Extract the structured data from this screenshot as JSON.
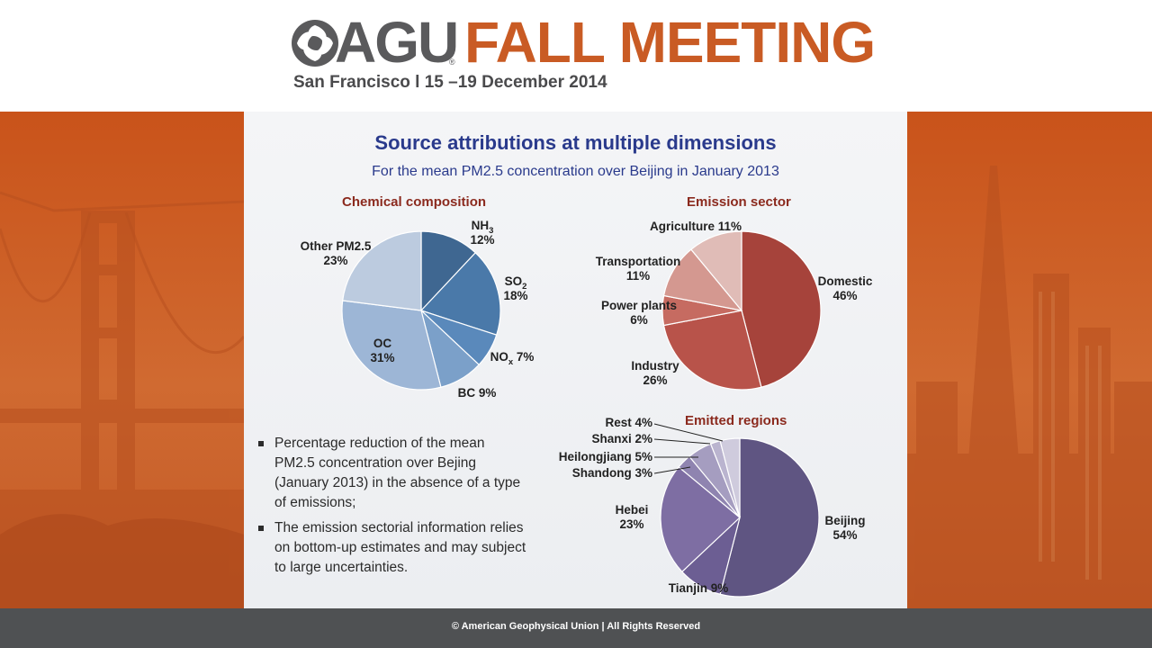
{
  "header": {
    "agu": "AGU",
    "fall_meeting": "FALL MEETING",
    "location_dates": "San Francisco  l  15 –19 December 2014"
  },
  "slide": {
    "title": "Source attributions at multiple dimensions",
    "subtitle": "For the mean PM2.5 concentration over Beijing in January 2013",
    "bullets": [
      "Percentage reduction of the mean PM2.5 concentration over Bejing (January 2013) in the absence of a type of emissions;",
      "The emission sectorial information relies on bottom-up estimates and may subject to large uncertainties."
    ]
  },
  "chart_data": [
    {
      "type": "pie",
      "title": "Chemical composition",
      "slices": [
        {
          "name": "NH3",
          "label": "NH",
          "sub": "3",
          "pct": "12%",
          "value": 12,
          "color": "#3f6791"
        },
        {
          "name": "SO2",
          "label": "SO",
          "sub": "2",
          "pct": "18%",
          "value": 18,
          "color": "#4a79a9"
        },
        {
          "name": "NOx",
          "label": "NO",
          "sub": "x",
          "pct": "7%",
          "value": 7,
          "color": "#5a89bb"
        },
        {
          "name": "BC",
          "label": "BC",
          "sub": "",
          "pct": "9%",
          "value": 9,
          "color": "#7ba0c9"
        },
        {
          "name": "OC",
          "label": "OC",
          "sub": "",
          "pct": "31%",
          "value": 31,
          "color": "#9db6d6"
        },
        {
          "name": "Other PM2.5",
          "label": "Other PM2.5",
          "sub": "",
          "pct": "23%",
          "value": 23,
          "color": "#bccbdf"
        }
      ]
    },
    {
      "type": "pie",
      "title": "Emission sector",
      "slices": [
        {
          "name": "Domestic",
          "label": "Domestic",
          "pct": "46%",
          "value": 46,
          "color": "#a6433b"
        },
        {
          "name": "Industry",
          "label": "Industry",
          "pct": "26%",
          "value": 26,
          "color": "#b8534a"
        },
        {
          "name": "Power plants",
          "label": "Power plants",
          "pct": "6%",
          "value": 6,
          "color": "#c66b61"
        },
        {
          "name": "Transportation",
          "label": "Transportation",
          "pct": "11%",
          "value": 11,
          "color": "#d49890"
        },
        {
          "name": "Agriculture",
          "label": "Agriculture",
          "pct": "11%",
          "value": 11,
          "color": "#e0bcb7"
        }
      ]
    },
    {
      "type": "pie",
      "title": "Emitted regions",
      "slices": [
        {
          "name": "Beijing",
          "label": "Beijing",
          "pct": "54%",
          "value": 54,
          "color": "#5f5582"
        },
        {
          "name": "Tianjin",
          "label": "Tianjin",
          "pct": "9%",
          "value": 9,
          "color": "#6c5e93"
        },
        {
          "name": "Hebei",
          "label": "Hebei",
          "pct": "23%",
          "value": 23,
          "color": "#7e6ea3"
        },
        {
          "name": "Shandong",
          "label": "Shandong",
          "pct": "3%",
          "value": 3,
          "color": "#8f84b0"
        },
        {
          "name": "Heilongjiang",
          "label": "Heilongjiang",
          "pct": "5%",
          "value": 5,
          "color": "#a59dc0"
        },
        {
          "name": "Shanxi",
          "label": "Shanxi",
          "pct": "2%",
          "value": 2,
          "color": "#bab4cf"
        },
        {
          "name": "Rest",
          "label": "Rest",
          "pct": "4%",
          "value": 4,
          "color": "#cfcbdd"
        }
      ]
    }
  ],
  "footer": {
    "copyright": "© American Geophysical Union | All Rights Reserved"
  }
}
